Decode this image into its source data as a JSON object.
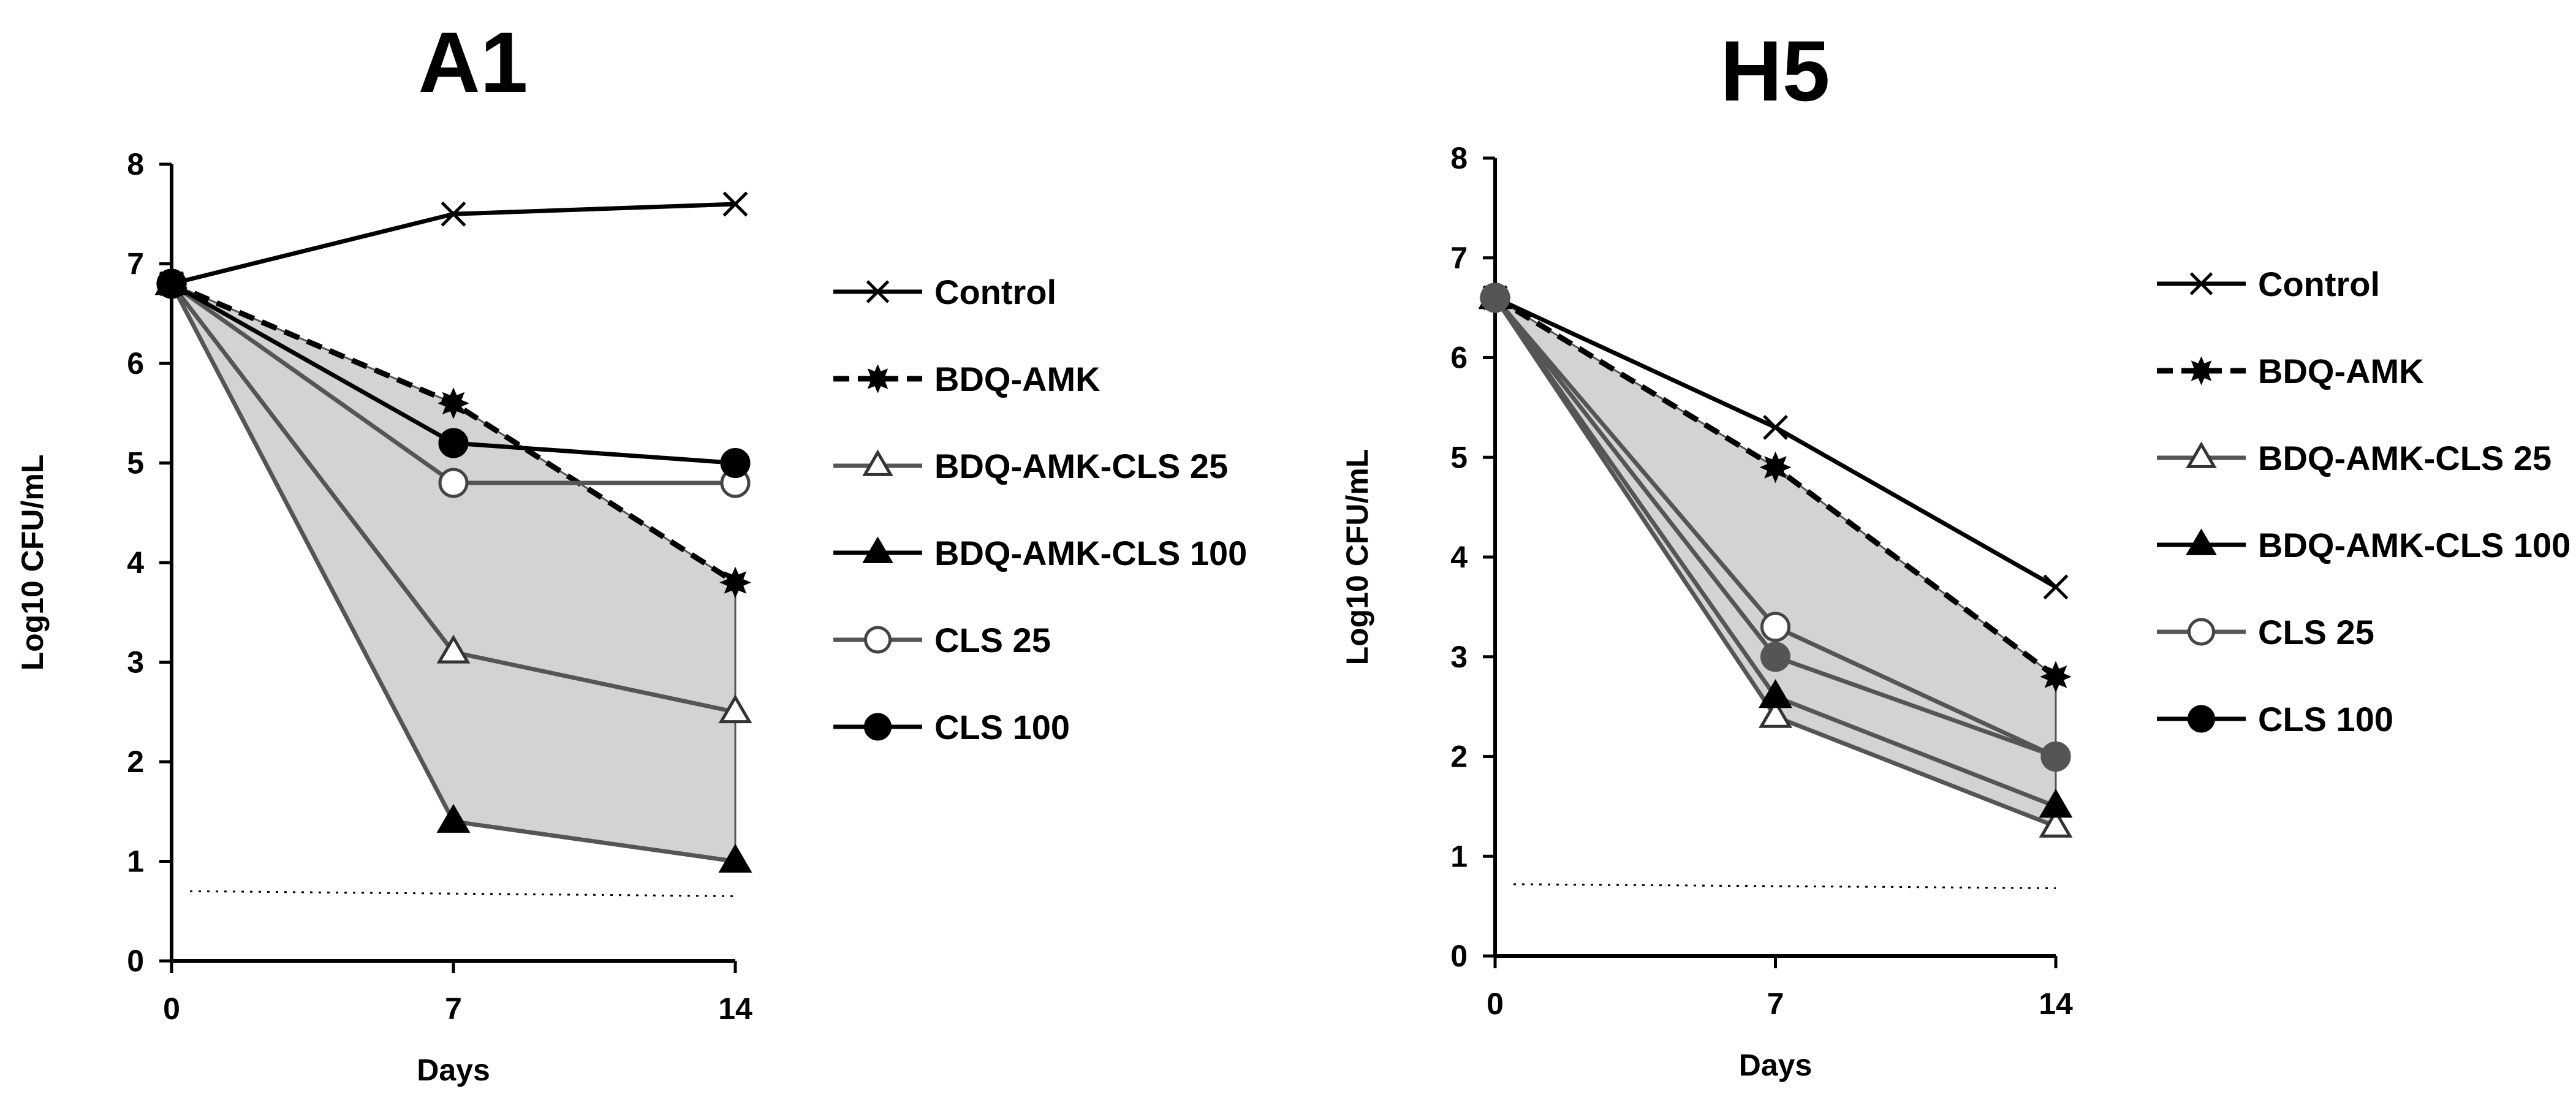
{
  "chart_data": [
    {
      "type": "line",
      "title": "A1",
      "xlabel": "Days",
      "ylabel": "Log10 CFU/mL",
      "x": [
        0,
        7,
        14
      ],
      "xticks": [
        "0",
        "7",
        "14"
      ],
      "yticks": [
        "0",
        "1",
        "2",
        "3",
        "4",
        "5",
        "6",
        "7",
        "8"
      ],
      "ylim": [
        0,
        8
      ],
      "detection_limit": [
        0.7,
        0.65
      ],
      "shaded_region": {
        "upper_series": "BDQ-AMK",
        "lower_series": "BDQ-AMK-CLS 100",
        "color": "#d3d3d3"
      },
      "series": [
        {
          "name": "Control",
          "values": [
            6.8,
            7.5,
            7.6
          ],
          "marker": "x",
          "line_style": "solid",
          "color": "#000000"
        },
        {
          "name": "BDQ-AMK",
          "values": [
            6.8,
            5.6,
            3.8
          ],
          "marker": "star",
          "line_style": "dashed",
          "color": "#000000"
        },
        {
          "name": "BDQ-AMK-CLS 25",
          "values": [
            6.8,
            3.1,
            2.5
          ],
          "marker": "triangle-open",
          "line_style": "solid",
          "color": "#555555"
        },
        {
          "name": "BDQ-AMK-CLS 100",
          "values": [
            6.8,
            1.4,
            1.0
          ],
          "marker": "triangle-filled",
          "line_style": "solid",
          "color": "#555555"
        },
        {
          "name": "CLS 25",
          "values": [
            6.8,
            4.8,
            4.8
          ],
          "marker": "circle-open",
          "line_style": "solid",
          "color": "#555555"
        },
        {
          "name": "CLS 100",
          "values": [
            6.8,
            5.2,
            5.0
          ],
          "marker": "circle-filled",
          "line_style": "solid",
          "color": "#000000"
        }
      ]
    },
    {
      "type": "line",
      "title": "H5",
      "xlabel": "Days",
      "ylabel": "Log10 CFU/mL",
      "x": [
        0,
        7,
        14
      ],
      "xticks": [
        "0",
        "7",
        "14"
      ],
      "yticks": [
        "0",
        "1",
        "2",
        "3",
        "4",
        "5",
        "6",
        "7",
        "8"
      ],
      "ylim": [
        0,
        8
      ],
      "detection_limit": [
        0.72,
        0.68
      ],
      "shaded_region": {
        "upper_series": "BDQ-AMK",
        "lower_series": "BDQ-AMK-CLS 25",
        "color": "#d3d3d3"
      },
      "series": [
        {
          "name": "Control",
          "values": [
            6.6,
            5.3,
            3.7
          ],
          "marker": "x",
          "line_style": "solid",
          "color": "#000000"
        },
        {
          "name": "BDQ-AMK",
          "values": [
            6.6,
            4.9,
            2.8
          ],
          "marker": "star",
          "line_style": "dashed",
          "color": "#000000"
        },
        {
          "name": "BDQ-AMK-CLS 25",
          "values": [
            6.6,
            2.4,
            1.3
          ],
          "marker": "triangle-open",
          "line_style": "solid",
          "color": "#555555"
        },
        {
          "name": "BDQ-AMK-CLS 100",
          "values": [
            6.6,
            2.6,
            1.5
          ],
          "marker": "triangle-filled",
          "line_style": "solid",
          "color": "#555555"
        },
        {
          "name": "CLS 25",
          "values": [
            6.6,
            3.3,
            2.0
          ],
          "marker": "circle-open",
          "line_style": "solid",
          "color": "#555555"
        },
        {
          "name": "CLS 100",
          "values": [
            6.6,
            3.0,
            2.0
          ],
          "marker": "circle-filled",
          "line_style": "solid",
          "color": "#555555"
        }
      ]
    }
  ]
}
